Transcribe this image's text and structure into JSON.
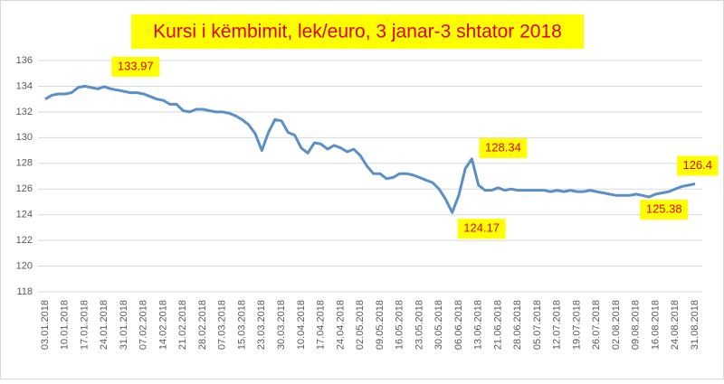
{
  "chart_data": {
    "type": "line",
    "title": "Kursi i këmbimit, lek/euro, 3 janar-3 shtator 2018",
    "categories": [
      "03.01.2018",
      null,
      null,
      "10.01.2018",
      null,
      null,
      "17.01.2018",
      null,
      null,
      "24.01.2018",
      null,
      null,
      "31.01.2018",
      null,
      null,
      "07.02.2018",
      null,
      null,
      "14.02.2018",
      null,
      null,
      "21.02.2018",
      null,
      null,
      "28.02.2018",
      null,
      null,
      "07.03.2018",
      null,
      null,
      "15.03.2018",
      null,
      null,
      "23.03.2018",
      null,
      null,
      "30.03.2018",
      null,
      null,
      "10.04.2018",
      null,
      null,
      "17.04.2018",
      null,
      null,
      "24.04.2018",
      null,
      null,
      "02.05.2018",
      null,
      null,
      "09.05.2018",
      null,
      null,
      "16.05.2018",
      null,
      null,
      "23.05.2018",
      null,
      null,
      "30.05.2018",
      null,
      null,
      "06.06.2018",
      null,
      null,
      "13.06.2018",
      null,
      null,
      "21.06.2018",
      null,
      null,
      "28.06.2018",
      null,
      null,
      "05.07.2018",
      null,
      null,
      "12.07.2018",
      null,
      null,
      "19.07.2018",
      null,
      null,
      "26.07.2018",
      null,
      null,
      "02.08.2018",
      null,
      null,
      "09.08.2018",
      null,
      null,
      "16.08.2018",
      null,
      null,
      "24.08.2018",
      null,
      null,
      "31.08.2018"
    ],
    "values": [
      133.0,
      133.3,
      133.4,
      133.4,
      133.5,
      133.9,
      134.0,
      133.9,
      133.8,
      133.97,
      133.8,
      133.7,
      133.6,
      133.5,
      133.5,
      133.4,
      133.2,
      133.0,
      132.9,
      132.6,
      132.6,
      132.1,
      132.0,
      132.2,
      132.2,
      132.1,
      132.0,
      132.0,
      131.9,
      131.7,
      131.4,
      131.0,
      130.3,
      129.0,
      130.4,
      131.4,
      131.3,
      130.4,
      130.2,
      129.2,
      128.8,
      129.6,
      129.5,
      129.1,
      129.4,
      129.2,
      128.9,
      129.1,
      128.6,
      127.8,
      127.2,
      127.2,
      126.8,
      126.9,
      127.2,
      127.2,
      127.1,
      126.9,
      126.7,
      126.5,
      126.0,
      125.2,
      124.17,
      125.5,
      127.6,
      128.34,
      126.3,
      125.9,
      125.9,
      126.1,
      125.9,
      126.0,
      125.9,
      125.9,
      125.9,
      125.9,
      125.9,
      125.8,
      125.9,
      125.8,
      125.9,
      125.8,
      125.8,
      125.9,
      125.8,
      125.7,
      125.6,
      125.5,
      125.5,
      125.5,
      125.6,
      125.5,
      125.38,
      125.6,
      125.7,
      125.8,
      126.0,
      126.2,
      126.3,
      126.4
    ],
    "value_labels": [
      null,
      null,
      null,
      null,
      null,
      null,
      null,
      null,
      null,
      "133.97",
      null,
      null,
      null,
      null,
      null,
      null,
      null,
      null,
      null,
      null,
      null,
      null,
      null,
      null,
      null,
      null,
      null,
      null,
      null,
      null,
      null,
      null,
      null,
      null,
      null,
      null,
      null,
      null,
      null,
      null,
      null,
      null,
      null,
      null,
      null,
      null,
      null,
      null,
      null,
      null,
      null,
      null,
      null,
      null,
      null,
      null,
      null,
      null,
      null,
      null,
      null,
      null,
      "124.17",
      null,
      null,
      "128.34",
      null,
      null,
      null,
      null,
      null,
      null,
      null,
      null,
      null,
      null,
      null,
      null,
      null,
      null,
      null,
      null,
      null,
      null,
      null,
      null,
      null,
      null,
      null,
      null,
      null,
      null,
      "125.38",
      null,
      null,
      null,
      null,
      null,
      null,
      "126.4"
    ],
    "color": "#5b8fc7",
    "ylim": [
      118,
      136
    ],
    "yticks": [
      118,
      120,
      122,
      124,
      126,
      128,
      130,
      132,
      134,
      136
    ],
    "grid": true
  }
}
